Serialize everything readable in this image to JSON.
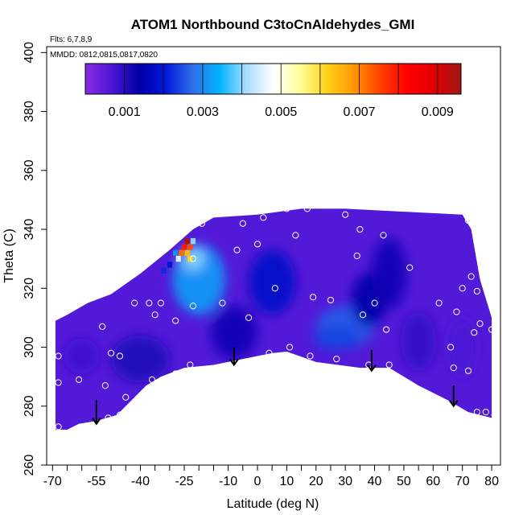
{
  "chart_data": {
    "type": "heatmap",
    "title": "ATOM1 Northbound C3toCnAldehydes_GMI",
    "annotations": {
      "flights": "Flts: 6,7,8,9",
      "dates": "MMDD: 0812,0815,0817,0820"
    },
    "xlabel": "Latitude (deg N)",
    "ylabel": "Theta (C)",
    "xlim": [
      -72,
      83
    ],
    "ylim": [
      260,
      402
    ],
    "x_major_ticks": [
      -70,
      -55,
      -40,
      -25,
      -10,
      0,
      10,
      20,
      30,
      40,
      50,
      60,
      70,
      80
    ],
    "x_major_tick_labels": [
      "-70",
      "-55",
      "-40",
      "-25",
      "-10",
      "0",
      "10",
      "20",
      "30",
      "40",
      "50",
      "60",
      "70",
      "80"
    ],
    "x_minor_ticks": [
      -65,
      -60,
      -50,
      -45,
      -35,
      -30,
      -20,
      -15,
      -5,
      5,
      15,
      25,
      35,
      45,
      55,
      65,
      75
    ],
    "y_ticks": [
      260,
      280,
      300,
      320,
      340,
      360,
      380,
      400
    ],
    "y_tick_labels": [
      "260",
      "280",
      "300",
      "320",
      "340",
      "360",
      "380",
      "400"
    ],
    "colorbar": {
      "min": 0,
      "max": 0.0096,
      "colors": [
        "#8a2be2",
        "#4b16d6",
        "#0000a8",
        "#0018d8",
        "#2f6fe8",
        "#00b4ff",
        "#a8dcff",
        "#ffffff",
        "#ffff99",
        "#ffd21a",
        "#ff9900",
        "#ff4000",
        "#ff0000",
        "#e00000",
        "#a01818"
      ],
      "tick_values": [
        0.001,
        0.003,
        0.005,
        0.007,
        0.009
      ],
      "tick_labels": [
        "0.001",
        "0.003",
        "0.005",
        "0.007",
        "0.009"
      ],
      "divider_values": [
        0.001,
        0.002,
        0.003,
        0.004,
        0.005,
        0.006,
        0.007,
        0.008,
        0.009
      ]
    },
    "field": {
      "background_value": 0.0006,
      "boundary": [
        [
          -69,
          272
        ],
        [
          -65,
          272
        ],
        [
          -61,
          274
        ],
        [
          -55,
          275
        ],
        [
          -48,
          277
        ],
        [
          -38,
          287
        ],
        [
          -33,
          290
        ],
        [
          -25,
          293
        ],
        [
          -15,
          294
        ],
        [
          -5,
          296
        ],
        [
          5,
          298
        ],
        [
          10,
          298.5
        ],
        [
          20,
          295
        ],
        [
          35,
          293
        ],
        [
          45,
          293
        ],
        [
          55,
          287
        ],
        [
          65,
          282
        ],
        [
          72,
          278
        ],
        [
          80,
          276
        ],
        [
          80,
          310
        ],
        [
          76,
          323
        ],
        [
          73,
          340
        ],
        [
          70,
          345
        ],
        [
          50,
          346
        ],
        [
          30,
          347
        ],
        [
          15,
          347
        ],
        [
          0,
          345
        ],
        [
          -15,
          344
        ],
        [
          -22,
          340
        ],
        [
          -30,
          333
        ],
        [
          -40,
          325
        ],
        [
          -50,
          318
        ],
        [
          -58,
          315
        ],
        [
          -65,
          311
        ],
        [
          -69,
          309
        ]
      ],
      "patches": [
        {
          "x": -20,
          "y": 323,
          "v": 0.0032,
          "rx": 9,
          "ry": 12
        },
        {
          "x": -22,
          "y": 330,
          "v": 0.004,
          "rx": 4,
          "ry": 4
        },
        {
          "x": 5,
          "y": 322,
          "v": 0.0018,
          "rx": 8,
          "ry": 11
        },
        {
          "x": 30,
          "y": 307,
          "v": 0.0026,
          "rx": 10,
          "ry": 7
        },
        {
          "x": 27,
          "y": 303,
          "v": 0.0024,
          "rx": 8,
          "ry": 4
        },
        {
          "x": 38,
          "y": 316,
          "v": 0.0014,
          "rx": 6,
          "ry": 9
        },
        {
          "x": -8,
          "y": 305,
          "v": 0.0012,
          "rx": 8,
          "ry": 9
        },
        {
          "x": -40,
          "y": 296,
          "v": 0.0011,
          "rx": 10,
          "ry": 8
        },
        {
          "x": -60,
          "y": 297,
          "v": 0.0008,
          "rx": 6,
          "ry": 6
        },
        {
          "x": 55,
          "y": 302,
          "v": 0.0009,
          "rx": 6,
          "ry": 10
        },
        {
          "x": 45,
          "y": 325,
          "v": 0.0012,
          "rx": 6,
          "ry": 12
        },
        {
          "x": 70,
          "y": 300,
          "v": 0.0007,
          "rx": 5,
          "ry": 10
        }
      ],
      "hotspot_cells": [
        {
          "x": -24,
          "y": 336,
          "v": 0.0095
        },
        {
          "x": -25,
          "y": 334,
          "v": 0.008
        },
        {
          "x": -24,
          "y": 332,
          "v": 0.0065
        },
        {
          "x": -23,
          "y": 334,
          "v": 0.0075
        },
        {
          "x": -22,
          "y": 336,
          "v": 0.004
        },
        {
          "x": -26,
          "y": 332,
          "v": 0.0072
        },
        {
          "x": -23,
          "y": 330,
          "v": 0.0062
        },
        {
          "x": -27,
          "y": 330,
          "v": 0.0045
        },
        {
          "x": -28,
          "y": 332,
          "v": 0.003
        },
        {
          "x": -30,
          "y": 328,
          "v": 0.002
        },
        {
          "x": -32,
          "y": 326,
          "v": 0.0022
        }
      ]
    },
    "markers": [
      {
        "x": -68,
        "y": 297
      },
      {
        "x": -68,
        "y": 288
      },
      {
        "x": -68,
        "y": 273
      },
      {
        "x": -61,
        "y": 289
      },
      {
        "x": -53,
        "y": 307
      },
      {
        "x": -50,
        "y": 298
      },
      {
        "x": -47,
        "y": 297
      },
      {
        "x": -52,
        "y": 287
      },
      {
        "x": -47,
        "y": 277
      },
      {
        "x": -51,
        "y": 276
      },
      {
        "x": -44,
        "y": 275
      },
      {
        "x": -45,
        "y": 283
      },
      {
        "x": -42,
        "y": 315
      },
      {
        "x": -37,
        "y": 315
      },
      {
        "x": -33,
        "y": 315
      },
      {
        "x": -35,
        "y": 311
      },
      {
        "x": -36,
        "y": 289
      },
      {
        "x": -28,
        "y": 291
      },
      {
        "x": -28,
        "y": 309
      },
      {
        "x": -22,
        "y": 314
      },
      {
        "x": -23,
        "y": 294
      },
      {
        "x": -22,
        "y": 330
      },
      {
        "x": -19,
        "y": 342
      },
      {
        "x": -12,
        "y": 315
      },
      {
        "x": -7,
        "y": 333
      },
      {
        "x": -5,
        "y": 342
      },
      {
        "x": 2,
        "y": 344
      },
      {
        "x": 0,
        "y": 335
      },
      {
        "x": -3,
        "y": 310
      },
      {
        "x": 4,
        "y": 298
      },
      {
        "x": 6,
        "y": 320
      },
      {
        "x": 10,
        "y": 347
      },
      {
        "x": 13,
        "y": 338
      },
      {
        "x": 11,
        "y": 300
      },
      {
        "x": 17,
        "y": 347
      },
      {
        "x": 18,
        "y": 297
      },
      {
        "x": 19,
        "y": 317
      },
      {
        "x": 25,
        "y": 316
      },
      {
        "x": 27,
        "y": 296
      },
      {
        "x": 30,
        "y": 345
      },
      {
        "x": 34,
        "y": 331
      },
      {
        "x": 35,
        "y": 340
      },
      {
        "x": 36,
        "y": 311
      },
      {
        "x": 40,
        "y": 315
      },
      {
        "x": 38,
        "y": 294
      },
      {
        "x": 43,
        "y": 338
      },
      {
        "x": 44,
        "y": 306
      },
      {
        "x": 45,
        "y": 294
      },
      {
        "x": 52,
        "y": 327
      },
      {
        "x": 62,
        "y": 315
      },
      {
        "x": 66,
        "y": 300
      },
      {
        "x": 67,
        "y": 293
      },
      {
        "x": 68,
        "y": 312
      },
      {
        "x": 70,
        "y": 320
      },
      {
        "x": 72,
        "y": 343
      },
      {
        "x": 73,
        "y": 324
      },
      {
        "x": 75,
        "y": 319
      },
      {
        "x": 76,
        "y": 308
      },
      {
        "x": 74,
        "y": 305
      },
      {
        "x": 75,
        "y": 278
      },
      {
        "x": 78,
        "y": 278
      },
      {
        "x": 80,
        "y": 306
      },
      {
        "x": 81,
        "y": 277
      },
      {
        "x": 72,
        "y": 292
      }
    ],
    "arrows": [
      {
        "x": -55,
        "y_from": 282,
        "y_to": 274
      },
      {
        "x": -8,
        "y_from": 300,
        "y_to": 294
      },
      {
        "x": 39,
        "y_from": 299,
        "y_to": 292
      },
      {
        "x": 67,
        "y_from": 287,
        "y_to": 280
      }
    ],
    "grid": false,
    "legend": "colorbar top inside plot"
  }
}
